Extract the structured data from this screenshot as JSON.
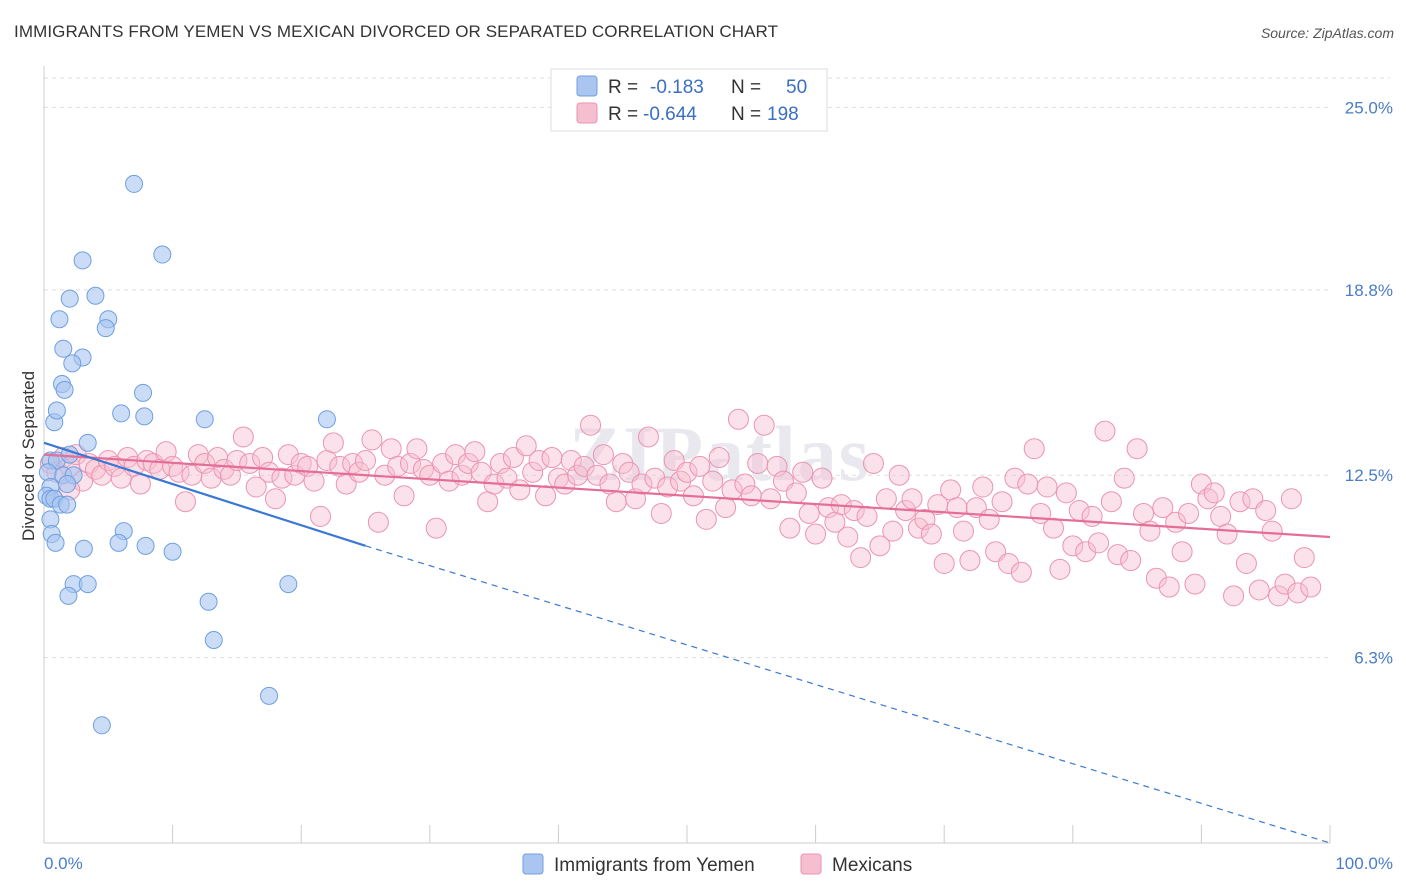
{
  "title": "IMMIGRANTS FROM YEMEN VS MEXICAN DIVORCED OR SEPARATED CORRELATION CHART",
  "source": "Source: ZipAtlas.com",
  "watermark": "ZIPatlas",
  "colors": {
    "yemen_fill": "#a9c5f0",
    "yemen_stroke": "#6f9fe0",
    "yemen_line": "#3a78d4",
    "mexican_fill": "#f6bfd0",
    "mexican_stroke": "#ec93b1",
    "mexican_line": "#e46e98",
    "tick_label": "#4a7cc7",
    "grid": "#dddddd"
  },
  "legend": {
    "rows": [
      {
        "r_label": "R =",
        "r_value": "-0.183",
        "n_label": "N =",
        "n_value": "50"
      },
      {
        "r_label": "R =",
        "r_value": "-0.644",
        "n_label": "N =",
        "n_value": "198"
      }
    ]
  },
  "bottom_legend": [
    "Immigrants from Yemen",
    "Mexicans"
  ],
  "chart_data": {
    "type": "scatter",
    "xlabel": "",
    "ylabel": "Divorced or Separated",
    "xlim": [
      0,
      100
    ],
    "ylim": [
      0,
      26
    ],
    "x_tick_labels": [
      {
        "value": 0,
        "label": "0.0%"
      },
      {
        "value": 100,
        "label": "100.0%"
      }
    ],
    "y_ticks": [
      {
        "value": 6.3,
        "label": "6.3%"
      },
      {
        "value": 12.5,
        "label": "12.5%"
      },
      {
        "value": 18.8,
        "label": "18.8%"
      },
      {
        "value": 25.0,
        "label": "25.0%"
      }
    ],
    "grid": "horizontal dashed",
    "legend_position": "top-center",
    "series": [
      {
        "name": "Immigrants from Yemen",
        "trend": {
          "x0": 0,
          "y0": 13.6,
          "x1": 25,
          "y1": 10.1,
          "dashed_to_x": 100,
          "dashed_to_y": 0
        },
        "points": [
          [
            7.0,
            22.4
          ],
          [
            9.2,
            20.0
          ],
          [
            3.0,
            19.8
          ],
          [
            2.0,
            18.5
          ],
          [
            4.0,
            18.6
          ],
          [
            1.2,
            17.8
          ],
          [
            5.0,
            17.8
          ],
          [
            4.8,
            17.5
          ],
          [
            1.5,
            16.8
          ],
          [
            3.0,
            16.5
          ],
          [
            2.2,
            16.3
          ],
          [
            1.4,
            15.6
          ],
          [
            1.6,
            15.4
          ],
          [
            7.7,
            15.3
          ],
          [
            6.0,
            14.6
          ],
          [
            7.8,
            14.5
          ],
          [
            12.5,
            14.4
          ],
          [
            22.0,
            14.4
          ],
          [
            0.8,
            14.3
          ],
          [
            1.0,
            14.7
          ],
          [
            3.4,
            13.6
          ],
          [
            0.5,
            13.0
          ],
          [
            1.0,
            13.0
          ],
          [
            2.0,
            13.2
          ],
          [
            0.3,
            12.6
          ],
          [
            1.5,
            12.5
          ],
          [
            2.3,
            12.5
          ],
          [
            0.5,
            12.1
          ],
          [
            1.8,
            12.2
          ],
          [
            0.2,
            11.8
          ],
          [
            0.5,
            11.7
          ],
          [
            0.8,
            11.7
          ],
          [
            1.3,
            11.5
          ],
          [
            1.8,
            11.5
          ],
          [
            0.5,
            11.0
          ],
          [
            0.6,
            10.5
          ],
          [
            6.2,
            10.6
          ],
          [
            0.9,
            10.2
          ],
          [
            5.8,
            10.2
          ],
          [
            3.1,
            10.0
          ],
          [
            7.9,
            10.1
          ],
          [
            10.0,
            9.9
          ],
          [
            2.3,
            8.8
          ],
          [
            3.4,
            8.8
          ],
          [
            19.0,
            8.8
          ],
          [
            1.9,
            8.4
          ],
          [
            12.8,
            8.2
          ],
          [
            13.2,
            6.9
          ],
          [
            17.5,
            5.0
          ],
          [
            4.5,
            4.0
          ]
        ]
      },
      {
        "name": "Mexicans",
        "trend": {
          "x0": 0,
          "y0": 13.2,
          "x1": 100,
          "y1": 10.4
        },
        "points": [
          [
            0.5,
            12.9
          ],
          [
            1.0,
            12.6
          ],
          [
            1.5,
            13.1
          ],
          [
            2.0,
            12.8
          ],
          [
            2.5,
            13.2
          ],
          [
            3.0,
            12.3
          ],
          [
            3.5,
            12.9
          ],
          [
            4.0,
            12.7
          ],
          [
            4.5,
            12.5
          ],
          [
            5.0,
            13.0
          ],
          [
            5.5,
            12.8
          ],
          [
            6.0,
            12.4
          ],
          [
            6.5,
            13.1
          ],
          [
            7.0,
            12.8
          ],
          [
            7.5,
            12.2
          ],
          [
            8.0,
            13.0
          ],
          [
            8.5,
            12.9
          ],
          [
            9.0,
            12.7
          ],
          [
            9.5,
            13.3
          ],
          [
            10.0,
            12.8
          ],
          [
            10.5,
            12.6
          ],
          [
            11.0,
            11.6
          ],
          [
            11.5,
            12.5
          ],
          [
            12.0,
            13.2
          ],
          [
            12.5,
            12.9
          ],
          [
            13.0,
            12.4
          ],
          [
            13.5,
            13.1
          ],
          [
            14.0,
            12.7
          ],
          [
            14.5,
            12.5
          ],
          [
            15.0,
            13.0
          ],
          [
            15.5,
            13.8
          ],
          [
            16.0,
            12.9
          ],
          [
            16.5,
            12.1
          ],
          [
            17.0,
            13.1
          ],
          [
            17.5,
            12.6
          ],
          [
            18.0,
            11.7
          ],
          [
            18.5,
            12.4
          ],
          [
            19.0,
            13.2
          ],
          [
            19.5,
            12.5
          ],
          [
            20.0,
            12.9
          ],
          [
            20.5,
            12.8
          ],
          [
            21.0,
            12.3
          ],
          [
            21.5,
            11.1
          ],
          [
            22.0,
            13.0
          ],
          [
            22.5,
            13.6
          ],
          [
            23.0,
            12.8
          ],
          [
            23.5,
            12.2
          ],
          [
            24.0,
            12.9
          ],
          [
            24.5,
            12.6
          ],
          [
            25.0,
            13.0
          ],
          [
            25.5,
            13.7
          ],
          [
            26.0,
            10.9
          ],
          [
            26.5,
            12.5
          ],
          [
            27.0,
            13.4
          ],
          [
            27.5,
            12.8
          ],
          [
            28.0,
            11.8
          ],
          [
            28.5,
            12.9
          ],
          [
            29.0,
            13.4
          ],
          [
            29.5,
            12.7
          ],
          [
            30.0,
            12.5
          ],
          [
            30.5,
            10.7
          ],
          [
            31.0,
            12.9
          ],
          [
            31.5,
            12.3
          ],
          [
            32.0,
            13.2
          ],
          [
            32.5,
            12.5
          ],
          [
            33.0,
            12.9
          ],
          [
            33.5,
            13.3
          ],
          [
            34.0,
            12.6
          ],
          [
            34.5,
            11.6
          ],
          [
            35.0,
            12.2
          ],
          [
            35.5,
            12.9
          ],
          [
            36.0,
            12.4
          ],
          [
            36.5,
            13.1
          ],
          [
            37.0,
            12.0
          ],
          [
            37.5,
            13.5
          ],
          [
            38.0,
            12.6
          ],
          [
            38.5,
            13.0
          ],
          [
            39.0,
            11.8
          ],
          [
            39.5,
            13.1
          ],
          [
            40.0,
            12.4
          ],
          [
            40.5,
            12.2
          ],
          [
            41.0,
            13.0
          ],
          [
            41.5,
            12.5
          ],
          [
            42.0,
            12.8
          ],
          [
            42.5,
            14.2
          ],
          [
            43.0,
            12.5
          ],
          [
            43.5,
            13.2
          ],
          [
            44.0,
            12.2
          ],
          [
            44.5,
            11.6
          ],
          [
            45.0,
            12.9
          ],
          [
            45.5,
            12.6
          ],
          [
            46.0,
            11.7
          ],
          [
            46.5,
            12.2
          ],
          [
            47.0,
            13.8
          ],
          [
            47.5,
            12.4
          ],
          [
            48.0,
            11.2
          ],
          [
            48.5,
            12.1
          ],
          [
            49.0,
            13.0
          ],
          [
            49.5,
            12.3
          ],
          [
            50.0,
            12.6
          ],
          [
            50.5,
            11.8
          ],
          [
            51.0,
            12.8
          ],
          [
            51.5,
            11.0
          ],
          [
            52.0,
            12.3
          ],
          [
            52.5,
            13.1
          ],
          [
            53.0,
            11.4
          ],
          [
            53.5,
            12.0
          ],
          [
            54.0,
            14.4
          ],
          [
            54.5,
            12.2
          ],
          [
            55.0,
            11.8
          ],
          [
            55.5,
            12.9
          ],
          [
            56.0,
            14.2
          ],
          [
            56.5,
            11.7
          ],
          [
            57.0,
            12.8
          ],
          [
            57.5,
            12.3
          ],
          [
            58.0,
            10.7
          ],
          [
            58.5,
            11.9
          ],
          [
            59.0,
            12.6
          ],
          [
            59.5,
            11.2
          ],
          [
            60.0,
            10.5
          ],
          [
            60.5,
            12.4
          ],
          [
            61.0,
            11.4
          ],
          [
            61.5,
            10.9
          ],
          [
            62.0,
            11.5
          ],
          [
            62.5,
            10.4
          ],
          [
            63.0,
            11.3
          ],
          [
            63.5,
            9.7
          ],
          [
            64.0,
            11.1
          ],
          [
            64.5,
            12.9
          ],
          [
            65.0,
            10.1
          ],
          [
            65.5,
            11.7
          ],
          [
            66.0,
            10.6
          ],
          [
            66.5,
            12.5
          ],
          [
            67.0,
            11.3
          ],
          [
            67.5,
            11.7
          ],
          [
            68.0,
            10.7
          ],
          [
            68.5,
            11.0
          ],
          [
            69.0,
            10.5
          ],
          [
            69.5,
            11.5
          ],
          [
            70.0,
            9.5
          ],
          [
            70.5,
            12.0
          ],
          [
            71.0,
            11.4
          ],
          [
            71.5,
            10.6
          ],
          [
            72.0,
            9.6
          ],
          [
            72.5,
            11.4
          ],
          [
            73.0,
            12.1
          ],
          [
            73.5,
            11.0
          ],
          [
            74.0,
            9.9
          ],
          [
            74.5,
            11.6
          ],
          [
            75.0,
            9.5
          ],
          [
            75.5,
            12.4
          ],
          [
            76.0,
            9.2
          ],
          [
            76.5,
            12.2
          ],
          [
            77.0,
            13.4
          ],
          [
            77.5,
            11.2
          ],
          [
            78.0,
            12.1
          ],
          [
            78.5,
            10.7
          ],
          [
            79.0,
            9.3
          ],
          [
            79.5,
            11.9
          ],
          [
            80.0,
            10.1
          ],
          [
            80.5,
            11.3
          ],
          [
            81.0,
            9.9
          ],
          [
            81.5,
            11.1
          ],
          [
            82.0,
            10.2
          ],
          [
            82.5,
            14.0
          ],
          [
            83.0,
            11.6
          ],
          [
            83.5,
            9.8
          ],
          [
            84.0,
            12.4
          ],
          [
            84.5,
            9.6
          ],
          [
            85.0,
            13.4
          ],
          [
            85.5,
            11.2
          ],
          [
            86.0,
            10.6
          ],
          [
            86.5,
            9.0
          ],
          [
            87.0,
            11.4
          ],
          [
            87.5,
            8.7
          ],
          [
            88.0,
            10.9
          ],
          [
            88.5,
            9.9
          ],
          [
            89.0,
            11.2
          ],
          [
            89.5,
            8.8
          ],
          [
            90.0,
            12.2
          ],
          [
            90.5,
            11.7
          ],
          [
            91.0,
            11.9
          ],
          [
            91.5,
            11.1
          ],
          [
            92.0,
            10.5
          ],
          [
            92.5,
            8.4
          ],
          [
            93.0,
            11.6
          ],
          [
            93.5,
            9.5
          ],
          [
            94.0,
            11.7
          ],
          [
            94.5,
            8.6
          ],
          [
            95.0,
            11.3
          ],
          [
            95.5,
            10.6
          ],
          [
            96.0,
            8.4
          ],
          [
            96.5,
            8.8
          ],
          [
            97.0,
            11.7
          ],
          [
            97.5,
            8.5
          ],
          [
            98.0,
            9.7
          ],
          [
            98.5,
            8.7
          ],
          [
            2.0,
            12.0
          ]
        ]
      }
    ]
  }
}
